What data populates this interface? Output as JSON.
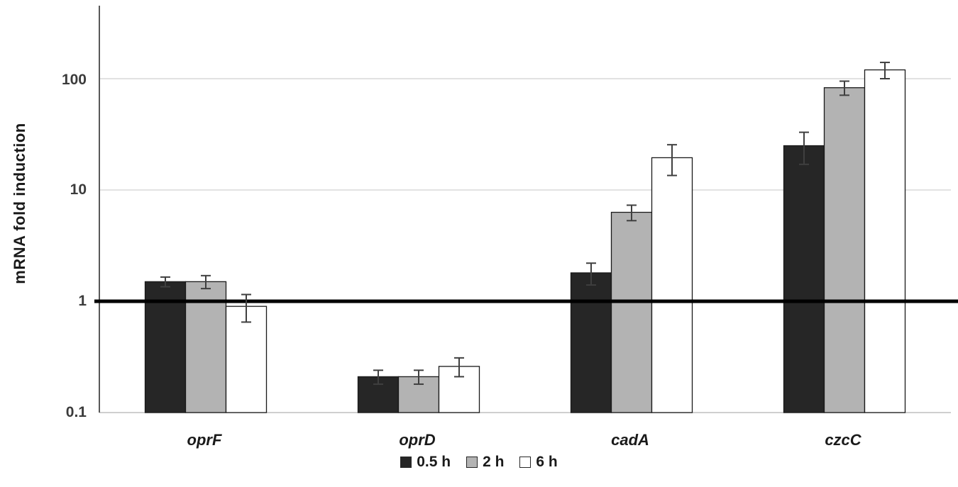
{
  "chart_data": {
    "type": "bar",
    "yscale": "log",
    "title": "",
    "xlabel": "",
    "ylabel": "mRNA fold induction",
    "categories": [
      "oprF",
      "oprD",
      "cadA",
      "czcC"
    ],
    "series": [
      {
        "name": "0.5 h",
        "color": "#262626",
        "values": [
          1.5,
          0.21,
          1.8,
          25
        ],
        "errors": [
          0.15,
          0.03,
          0.4,
          8
        ]
      },
      {
        "name": "2 h",
        "color": "#b3b3b3",
        "values": [
          1.5,
          0.21,
          6.3,
          83
        ],
        "errors": [
          0.2,
          0.03,
          1.0,
          12
        ]
      },
      {
        "name": "6 h",
        "color": "#ffffff",
        "values": [
          0.9,
          0.26,
          19.5,
          120
        ],
        "errors": [
          0.25,
          0.05,
          6,
          20
        ]
      }
    ],
    "ytick_labels": [
      "100",
      "10",
      "1",
      "0.1"
    ],
    "yticks": [
      100,
      10,
      1,
      0.1
    ],
    "ylim": [
      0.1,
      450
    ],
    "reference_line": 1,
    "gridlines": [
      100,
      10
    ],
    "grid": "horizontal-light",
    "legend_position": "bottom",
    "bar_edge_color": "#1a1a1a",
    "error_bar_color": "#3f3f3f"
  }
}
